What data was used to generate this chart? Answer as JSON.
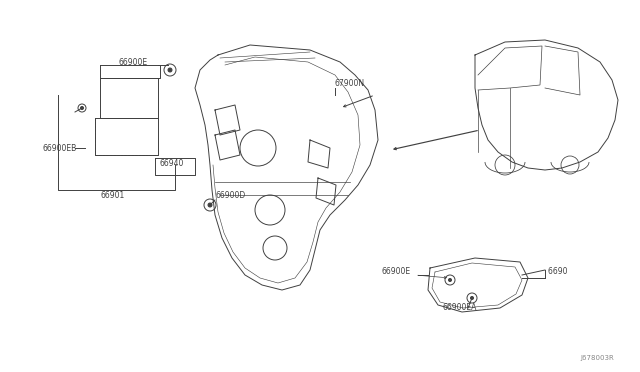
{
  "background_color": "#ffffff",
  "line_color": "#404040",
  "label_color": "#404040",
  "diagram_number": "J678003R",
  "figsize": [
    6.4,
    3.72
  ],
  "dpi": 100,
  "labels": {
    "66900E_top": "66900E",
    "66900EB": "66900EB",
    "66940": "66940",
    "66901": "66901",
    "66900D": "66900D",
    "67900N": "67900N",
    "66900E_bot": "66900E",
    "66900EA": "66900EA",
    "66900_right": "6690 "
  }
}
